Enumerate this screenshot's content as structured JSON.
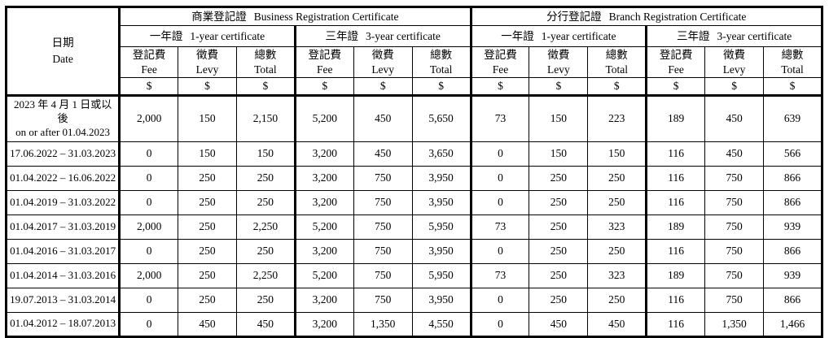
{
  "header": {
    "date": {
      "zh": "日期",
      "en": "Date"
    },
    "business": {
      "zh": "商業登記證",
      "en": "Business Registration Certificate"
    },
    "branch": {
      "zh": "分行登記證",
      "en": "Branch Registration Certificate"
    },
    "one_year": {
      "zh": "一年證",
      "en": "1-year certificate"
    },
    "three_year": {
      "zh": "三年證",
      "en": "3-year certificate"
    },
    "fee": {
      "zh": "登記費",
      "en": "Fee"
    },
    "levy": {
      "zh": "徵費",
      "en": "Levy"
    },
    "total": {
      "zh": "總數",
      "en": "Total"
    },
    "currency": "$"
  },
  "rows": [
    {
      "date": [
        "2023 年 4 月 1 日或以後",
        "on or after 01.04.2023"
      ],
      "values": [
        "2,000",
        "150",
        "2,150",
        "5,200",
        "450",
        "5,650",
        "73",
        "150",
        "223",
        "189",
        "450",
        "639"
      ]
    },
    {
      "date": [
        "17.06.2022 – 31.03.2023"
      ],
      "values": [
        "0",
        "150",
        "150",
        "3,200",
        "450",
        "3,650",
        "0",
        "150",
        "150",
        "116",
        "450",
        "566"
      ]
    },
    {
      "date": [
        "01.04.2022 – 16.06.2022"
      ],
      "values": [
        "0",
        "250",
        "250",
        "3,200",
        "750",
        "3,950",
        "0",
        "250",
        "250",
        "116",
        "750",
        "866"
      ]
    },
    {
      "date": [
        "01.04.2019 – 31.03.2022"
      ],
      "values": [
        "0",
        "250",
        "250",
        "3,200",
        "750",
        "3,950",
        "0",
        "250",
        "250",
        "116",
        "750",
        "866"
      ]
    },
    {
      "date": [
        "01.04.2017 – 31.03.2019"
      ],
      "values": [
        "2,000",
        "250",
        "2,250",
        "5,200",
        "750",
        "5,950",
        "73",
        "250",
        "323",
        "189",
        "750",
        "939"
      ]
    },
    {
      "date": [
        "01.04.2016 – 31.03.2017"
      ],
      "values": [
        "0",
        "250",
        "250",
        "3,200",
        "750",
        "3,950",
        "0",
        "250",
        "250",
        "116",
        "750",
        "866"
      ]
    },
    {
      "date": [
        "01.04.2014 – 31.03.2016"
      ],
      "values": [
        "2,000",
        "250",
        "2,250",
        "5,200",
        "750",
        "5,950",
        "73",
        "250",
        "323",
        "189",
        "750",
        "939"
      ]
    },
    {
      "date": [
        "19.07.2013 – 31.03.2014"
      ],
      "values": [
        "0",
        "250",
        "250",
        "3,200",
        "750",
        "3,950",
        "0",
        "250",
        "250",
        "116",
        "750",
        "866"
      ]
    },
    {
      "date": [
        "01.04.2012 – 18.07.2013"
      ],
      "values": [
        "0",
        "450",
        "450",
        "3,200",
        "1,350",
        "4,550",
        "0",
        "450",
        "450",
        "116",
        "1,350",
        "1,466"
      ]
    }
  ],
  "colors": {
    "border": "#000000",
    "background": "#ffffff",
    "text": "#000000"
  }
}
